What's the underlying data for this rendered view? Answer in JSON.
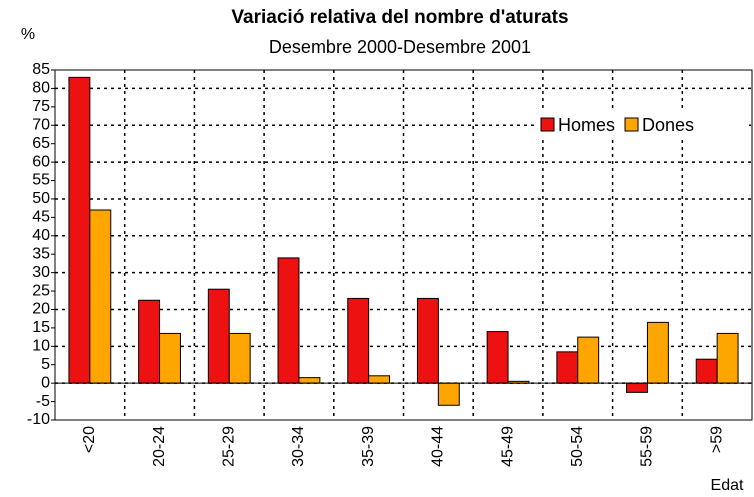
{
  "chart_data": {
    "type": "bar",
    "title": "Variació relativa del nombre d'aturats",
    "subtitle": "Desembre 2000-Desembre 2001",
    "y_label": "%",
    "x_label": "Edat",
    "categories": [
      "<20",
      "20-24",
      "25-29",
      "30-34",
      "35-39",
      "40-44",
      "45-49",
      "50-54",
      "55-59",
      ">59"
    ],
    "series": [
      {
        "name": "Homes",
        "color": "#ee1111",
        "values": [
          83,
          22.5,
          25.5,
          34,
          23,
          23,
          14,
          8.5,
          -2.5,
          6.5
        ]
      },
      {
        "name": "Dones",
        "color": "#ffa500",
        "values": [
          47,
          13.5,
          13.5,
          1.5,
          2,
          -6,
          0.5,
          12.5,
          16.5,
          13.5
        ]
      }
    ],
    "ylim": [
      -10,
      85
    ],
    "yticks": [
      -10,
      -5,
      0,
      5,
      10,
      15,
      20,
      25,
      30,
      35,
      40,
      45,
      50,
      55,
      60,
      65,
      70,
      75,
      80,
      85
    ],
    "grid": true,
    "legend": "top-right"
  }
}
